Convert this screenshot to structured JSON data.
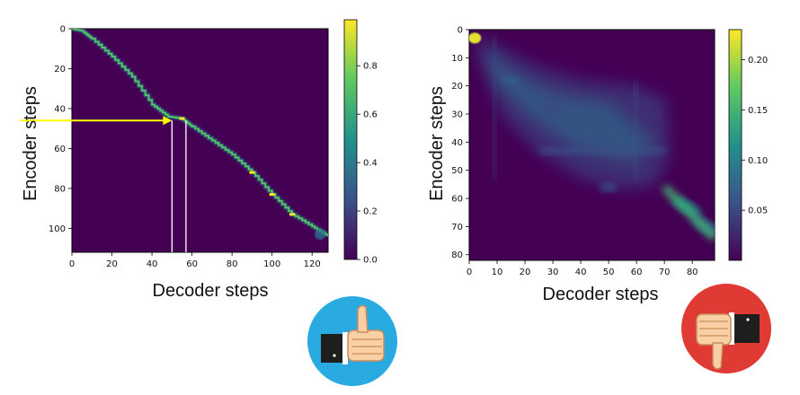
{
  "colors": {
    "viridis_low": "#440154",
    "viridis_high": "#fde725",
    "arrow": "#ffff00",
    "guide_lines": "#ffffff",
    "thumbs_up_bg": "#29abe2",
    "thumbs_down_bg": "#e03a34",
    "skin": "#f9cfa6",
    "sleeve": "#222222"
  },
  "icons": {
    "good": "thumbs-up-icon",
    "bad": "thumbs-down-icon"
  },
  "chart_data": [
    {
      "type": "heatmap",
      "title": "",
      "xlabel": "Decoder steps",
      "ylabel": "Encoder steps",
      "xlim": [
        0,
        128
      ],
      "ylim": [
        112,
        0
      ],
      "xticks": [
        0,
        20,
        40,
        60,
        80,
        100,
        120
      ],
      "yticks": [
        0,
        20,
        40,
        60,
        80,
        100
      ],
      "colorbar": {
        "range": [
          0,
          0.99
        ],
        "ticks": [
          "0.0",
          "0.2",
          "0.4",
          "0.6",
          "0.8"
        ],
        "tick_values": [
          0,
          0.2,
          0.4,
          0.6,
          0.8
        ]
      },
      "pattern": "sharp monotonic diagonal alignment",
      "alignment_path": [
        [
          0,
          0
        ],
        [
          5,
          1
        ],
        [
          10,
          5
        ],
        [
          20,
          14
        ],
        [
          30,
          24
        ],
        [
          40,
          38
        ],
        [
          48,
          44
        ],
        [
          55,
          45
        ],
        [
          60,
          49
        ],
        [
          70,
          56
        ],
        [
          80,
          63
        ],
        [
          90,
          72
        ],
        [
          100,
          83
        ],
        [
          110,
          93
        ],
        [
          120,
          99
        ],
        [
          128,
          104
        ]
      ],
      "annotation": {
        "arrow_to": [
          50,
          46
        ],
        "arrow_from_encoder_step": 46,
        "vertical_lines_at_decoder_step": [
          50,
          57
        ]
      }
    },
    {
      "type": "heatmap",
      "title": "",
      "xlabel": "Decoder steps",
      "ylabel": "Encoder steps",
      "xlim": [
        0,
        88
      ],
      "ylim": [
        82,
        0
      ],
      "xticks": [
        0,
        10,
        20,
        30,
        40,
        50,
        60,
        70,
        80
      ],
      "yticks": [
        0,
        10,
        20,
        30,
        40,
        50,
        60,
        70,
        80
      ],
      "colorbar": {
        "range": [
          0,
          0.23
        ],
        "ticks": [
          "0.05",
          "0.10",
          "0.15",
          "0.20"
        ],
        "tick_values": [
          0.05,
          0.1,
          0.15,
          0.2
        ]
      },
      "pattern": "diffuse, blurred attention with weak diagonal",
      "hotspots": [
        {
          "decoder": 2,
          "encoder": 3,
          "value": 0.22
        },
        {
          "decoder": 15,
          "encoder": 18,
          "value": 0.07
        },
        {
          "decoder": 30,
          "encoder": 28,
          "value": 0.05
        },
        {
          "decoder": 50,
          "encoder": 56,
          "value": 0.06
        },
        {
          "decoder": 78,
          "encoder": 63,
          "value": 0.11
        },
        {
          "decoder": 85,
          "encoder": 70,
          "value": 0.08
        }
      ]
    }
  ]
}
